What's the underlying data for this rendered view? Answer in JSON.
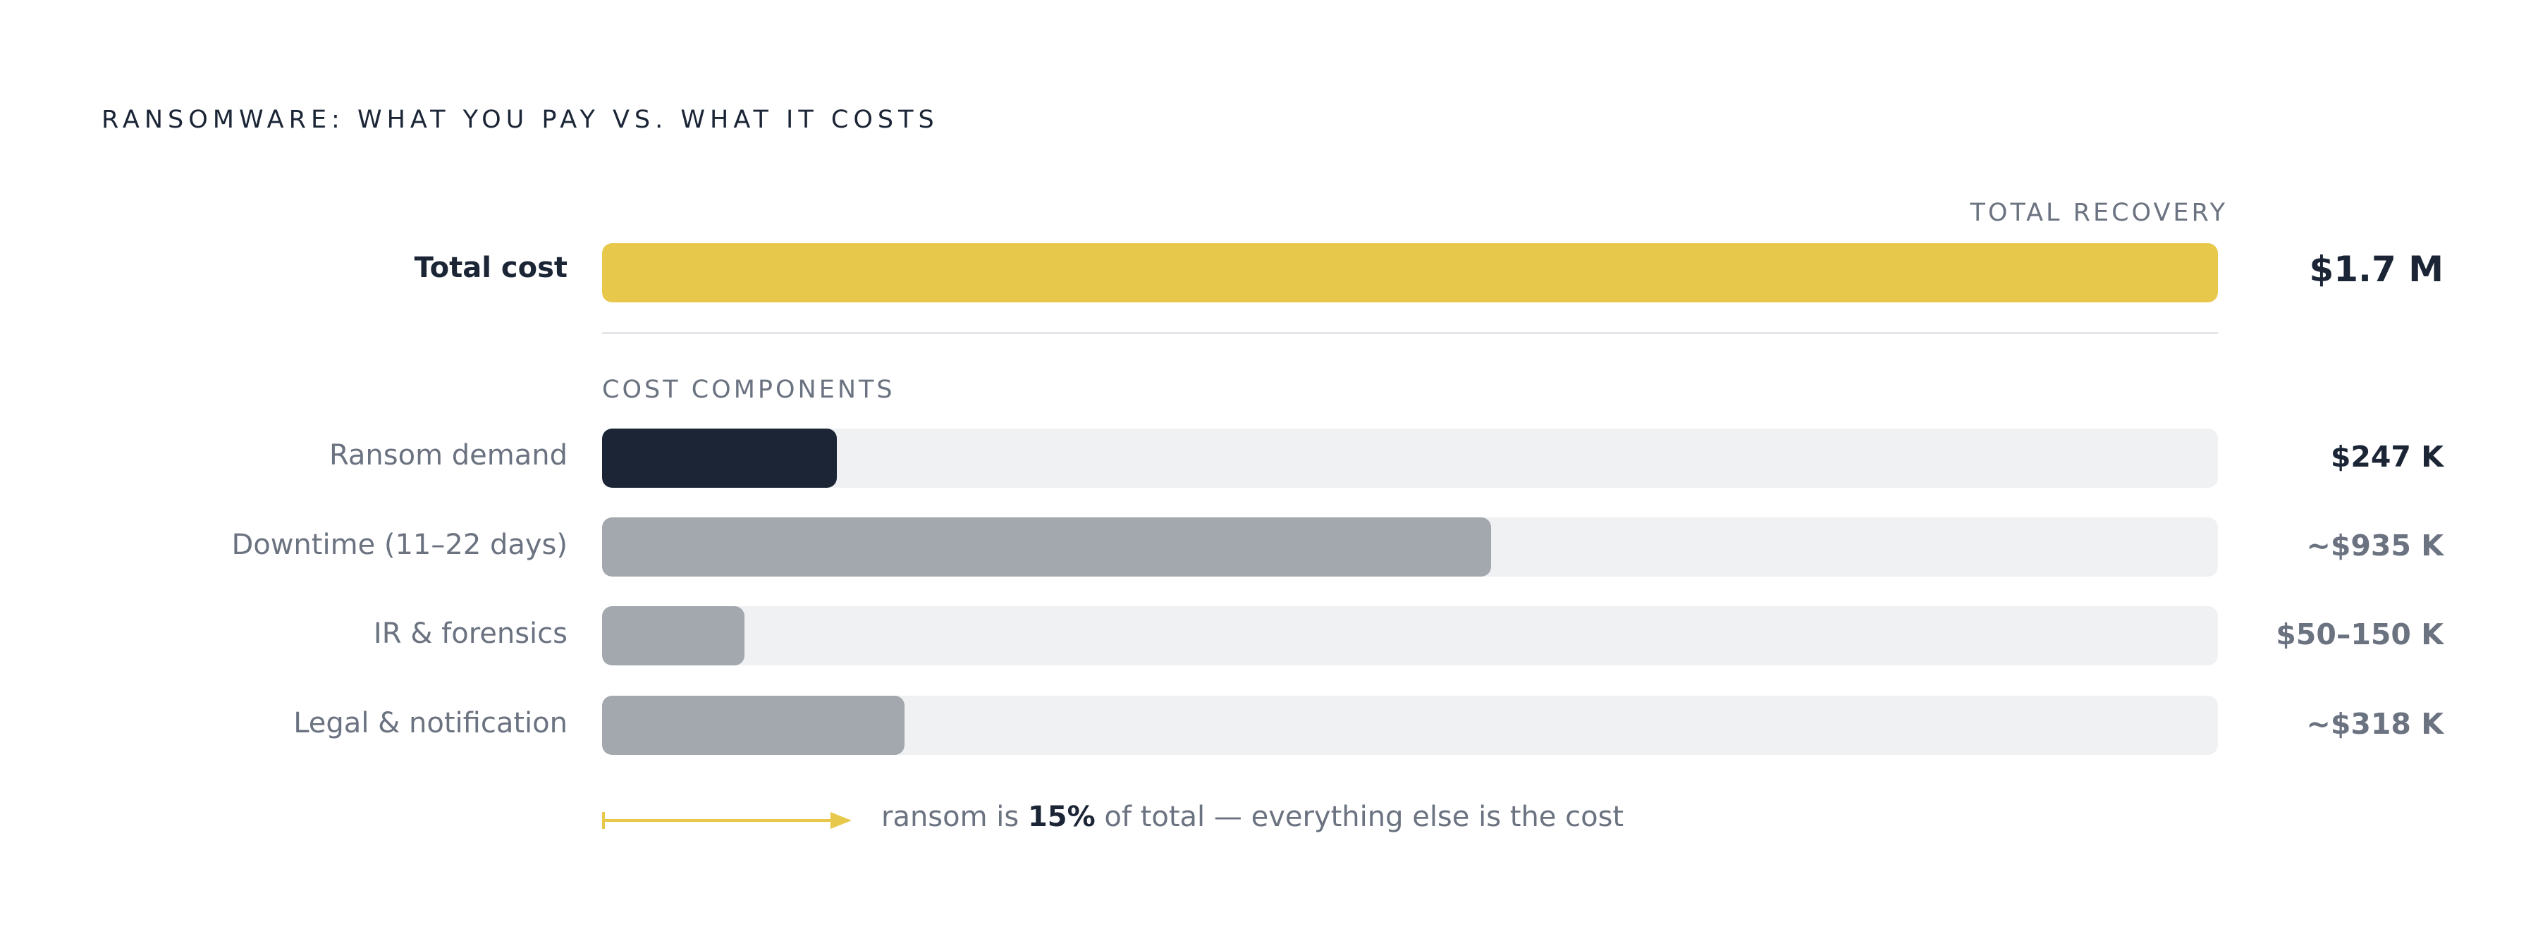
{
  "title": "RANSOMWARE: WHAT YOU PAY VS. WHAT IT COSTS",
  "total_header": "TOTAL RECOVERY",
  "components_header": "COST COMPONENTS",
  "colors": {
    "total": "#e8c84a",
    "ransom": "#1b2536",
    "other": "#a3a7ae",
    "track": "#f0f1f2"
  },
  "footnote": {
    "prefix": "ransom is ",
    "highlight": "15%",
    "suffix": " of total — everything else is the cost"
  },
  "chart_data": {
    "type": "bar",
    "orientation": "horizontal",
    "unit": "$K",
    "scale_max": 1700,
    "total": {
      "label": "Total cost",
      "value": 1700,
      "display": "$1.7 M"
    },
    "components": [
      {
        "label": "Ransom demand",
        "value": 247,
        "display": "$247 K"
      },
      {
        "label": "Downtime (11–22 days)",
        "value": 935,
        "display": "~$935 K"
      },
      {
        "label": "IR & forensics",
        "value": 150,
        "display": "$50–150 K",
        "range": [
          50,
          150
        ]
      },
      {
        "label": "Legal & notification",
        "value": 318,
        "display": "~$318 K"
      }
    ]
  }
}
